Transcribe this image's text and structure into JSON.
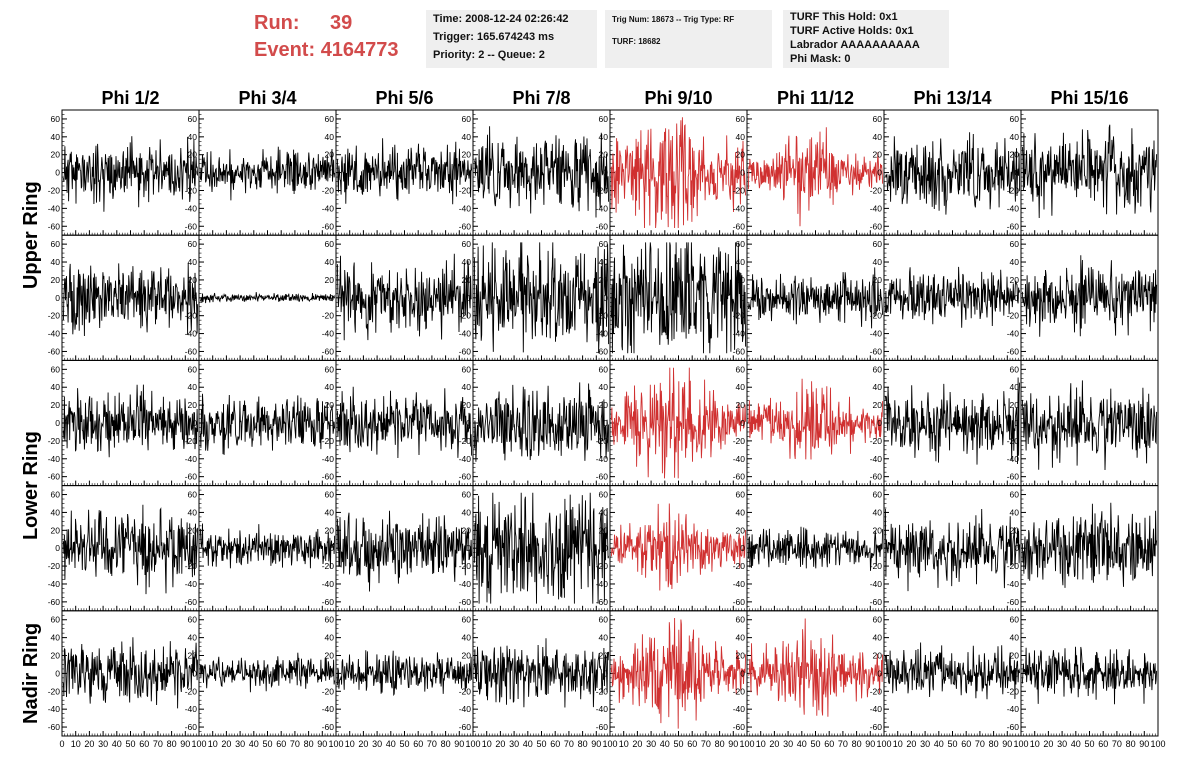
{
  "header": {
    "run_label": "Run:",
    "run_value": "39",
    "event_label": "Event:",
    "event_value": "4164773",
    "info_time": [
      "Time: 2008-12-24 02:26:42",
      "Trigger: 165.674243 ms",
      "Priority: 2 -- Queue: 2"
    ],
    "info_trig": [
      "Trig Num: 18673 -- Trig Type: RF",
      "",
      "TURF: 18682"
    ],
    "info_turf": [
      "TURF This Hold: 0x1",
      "TURF Active Holds: 0x1",
      "Labrador AAAAAAAAAA",
      "Phi Mask: 0"
    ]
  },
  "colors": {
    "highlight_trace": "#d03030",
    "normal_trace": "#000000",
    "run_event_text": "#d24b4b",
    "info_box_bg": "#efefef"
  },
  "chart_data": {
    "type": "line",
    "columns": [
      "Phi 1/2",
      "Phi 3/4",
      "Phi 5/6",
      "Phi 7/8",
      "Phi 9/10",
      "Phi 11/12",
      "Phi 13/14",
      "Phi 15/16"
    ],
    "row_groups": [
      "Upper Ring",
      "Lower Ring",
      "Nadir Ring"
    ],
    "rows": 5,
    "xlim": [
      0,
      100
    ],
    "ylim": [
      -70,
      70
    ],
    "x_ticks": [
      "0",
      "10",
      "20",
      "30",
      "40",
      "50",
      "60",
      "70",
      "80",
      "90",
      "100"
    ],
    "y_ticks": [
      "60",
      "40",
      "20",
      "0",
      "-20",
      "-40",
      "-60"
    ],
    "grid": false,
    "highlighted_panels": [
      [
        0,
        4
      ],
      [
        0,
        5
      ],
      [
        2,
        4
      ],
      [
        2,
        5
      ],
      [
        3,
        4
      ],
      [
        4,
        4
      ],
      [
        4,
        5
      ]
    ],
    "waveforms": {
      "r0": [
        {
          "amp": 14,
          "seed": 11
        },
        {
          "amp": 10,
          "seed": 12
        },
        {
          "amp": 13,
          "seed": 13
        },
        {
          "amp": 17,
          "seed": 14
        },
        {
          "amp": 27,
          "seed": 15
        },
        {
          "amp": 15,
          "seed": 16
        },
        {
          "amp": 16,
          "seed": 17
        },
        {
          "amp": 17,
          "seed": 18
        }
      ],
      "r1": [
        {
          "amp": 15,
          "seed": 21
        },
        {
          "amp": 2,
          "seed": 22
        },
        {
          "amp": 17,
          "seed": 23
        },
        {
          "amp": 24,
          "seed": 24
        },
        {
          "amp": 28,
          "seed": 25
        },
        {
          "amp": 11,
          "seed": 26
        },
        {
          "amp": 11,
          "seed": 27
        },
        {
          "amp": 15,
          "seed": 28
        }
      ],
      "r2": [
        {
          "amp": 14,
          "seed": 31
        },
        {
          "amp": 12,
          "seed": 32
        },
        {
          "amp": 14,
          "seed": 33
        },
        {
          "amp": 17,
          "seed": 34
        },
        {
          "amp": 22,
          "seed": 35
        },
        {
          "amp": 17,
          "seed": 36
        },
        {
          "amp": 16,
          "seed": 37
        },
        {
          "amp": 17,
          "seed": 38
        }
      ],
      "r3": [
        {
          "amp": 17,
          "seed": 41
        },
        {
          "amp": 9,
          "seed": 42
        },
        {
          "amp": 16,
          "seed": 43
        },
        {
          "amp": 27,
          "seed": 44
        },
        {
          "amp": 17,
          "seed": 45
        },
        {
          "amp": 9,
          "seed": 46
        },
        {
          "amp": 15,
          "seed": 47
        },
        {
          "amp": 18,
          "seed": 48
        }
      ],
      "r4": [
        {
          "amp": 14,
          "seed": 51
        },
        {
          "amp": 8,
          "seed": 52
        },
        {
          "amp": 9,
          "seed": 53
        },
        {
          "amp": 14,
          "seed": 54
        },
        {
          "amp": 20,
          "seed": 55
        },
        {
          "amp": 18,
          "seed": 56
        },
        {
          "amp": 12,
          "seed": 57
        },
        {
          "amp": 12,
          "seed": 58
        }
      ]
    }
  }
}
